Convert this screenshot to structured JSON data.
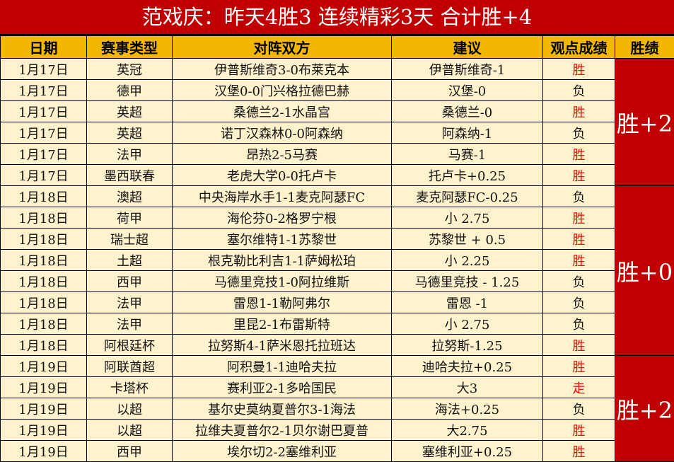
{
  "title": "范戏庆：昨天4胜3  连续精彩3天  合计胜+4",
  "headers": [
    "日期",
    "赛事类型",
    "对阵双方",
    "建议",
    "观点成绩",
    "胜绩"
  ],
  "colors": {
    "title_bg": "#C00000",
    "header_bg": "#F2B800",
    "row_bg": "#FFF2CC",
    "win_text": "#FF0000",
    "total_bg": "#C00000"
  },
  "rows": [
    [
      "1月17日",
      "英冠",
      "伊普斯维奇3-0布莱克本",
      "伊普斯维奇-1",
      "胜"
    ],
    [
      "1月17日",
      "德甲",
      "汉堡0-0门兴格拉德巴赫",
      "汉堡-0",
      "负"
    ],
    [
      "1月17日",
      "英超",
      "桑德兰2-1水晶宫",
      "桑德兰-0",
      "胜"
    ],
    [
      "1月17日",
      "英超",
      "诺丁汉森林0-0阿森纳",
      "阿森纳-1",
      "负"
    ],
    [
      "1月17日",
      "法甲",
      "昂热2-5马赛",
      "马赛-1",
      "胜"
    ],
    [
      "1月17日",
      "墨西联春",
      "老虎大学0-0托卢卡",
      "托卢卡+0.25",
      "胜"
    ],
    [
      "1月18日",
      "澳超",
      "中央海岸水手1-1麦克阿瑟FC",
      "麦克阿瑟FC-0.25",
      "负"
    ],
    [
      "1月18日",
      "荷甲",
      "海伦芬0-2格罗宁根",
      "小 2.75",
      "胜"
    ],
    [
      "1月18日",
      "瑞士超",
      "塞尔维特1-1苏黎世",
      "苏黎世 + 0.5",
      "胜"
    ],
    [
      "1月18日",
      "土超",
      "根克勒比利吉1-1萨姆松珀",
      "小 2.25",
      "胜"
    ],
    [
      "1月18日",
      "西甲",
      "马德里竞技1-0阿拉维斯",
      "马德里竞技 - 1.25",
      "负"
    ],
    [
      "1月18日",
      "法甲",
      "雷恩1-1勒阿弗尔",
      "雷恩 -1",
      "负"
    ],
    [
      "1月18日",
      "法甲",
      "里昆2-1布雷斯特",
      "小 2.75",
      "负"
    ],
    [
      "1月18日",
      "阿根廷杯",
      "拉努斯4-1萨米恩托拉班达",
      "拉努斯-1.25",
      "胜"
    ],
    [
      "1月19日",
      "阿联酋超",
      "阿积曼1-1迪哈夫拉",
      "迪哈夫拉+0.25",
      "胜"
    ],
    [
      "1月19日",
      "卡塔杯",
      "赛利亚2-1多哈国民",
      "大3",
      "走"
    ],
    [
      "1月19日",
      "以超",
      "基尔史莫纳夏普尔3-1海法",
      "海法+0.25",
      "负"
    ],
    [
      "1月19日",
      "以超",
      "拉维夫夏普尔2-1贝尔谢巴夏普",
      "大2.75",
      "胜"
    ],
    [
      "1月19日",
      "西甲",
      "埃尔切2-2塞维利亚",
      "塞维利亚+0.25",
      "胜"
    ]
  ],
  "totals": [
    {
      "label": "胜+2",
      "span": 6
    },
    {
      "label": "胜+0",
      "span": 8
    },
    {
      "label": "胜+2",
      "span": 5
    }
  ]
}
